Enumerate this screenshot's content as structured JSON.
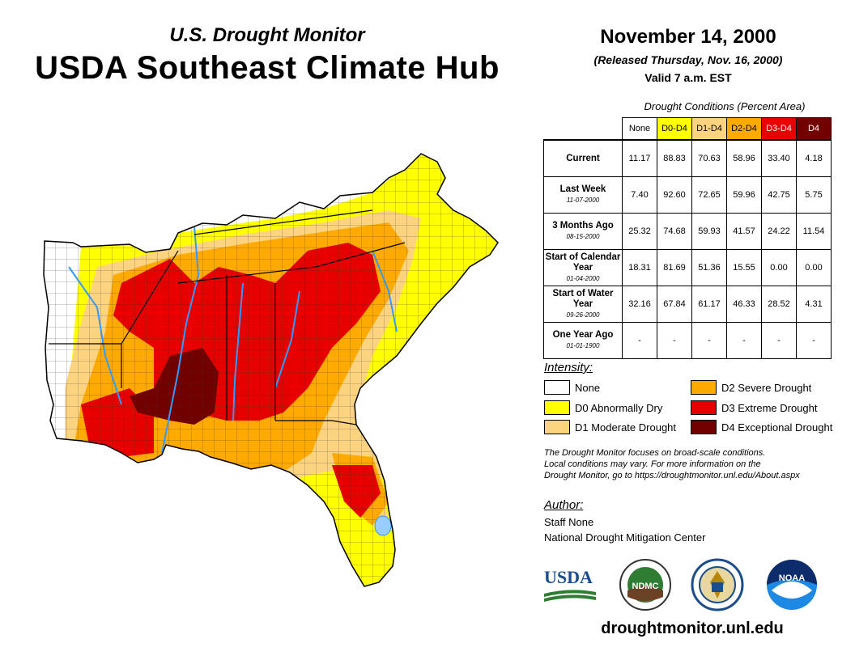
{
  "header": {
    "subtitle": "U.S. Drought Monitor",
    "title": "USDA Southeast Climate Hub",
    "date": "November 14, 2000",
    "released": "(Released Thursday, Nov. 16, 2000)",
    "valid": "Valid 7 a.m. EST"
  },
  "table": {
    "caption": "Drought Conditions (Percent Area)",
    "columns": [
      "None",
      "D0-D4",
      "D1-D4",
      "D2-D4",
      "D3-D4",
      "D4"
    ],
    "column_colors": [
      "#ffffff",
      "#ffff00",
      "#fcd37f",
      "#ffaa00",
      "#e60000",
      "#730000"
    ],
    "rows": [
      {
        "label": "Current",
        "date": "",
        "values": [
          "11.17",
          "88.83",
          "70.63",
          "58.96",
          "33.40",
          "4.18"
        ]
      },
      {
        "label": "Last Week",
        "date": "11-07-2000",
        "values": [
          "7.40",
          "92.60",
          "72.65",
          "59.96",
          "42.75",
          "5.75"
        ]
      },
      {
        "label": "3 Months Ago",
        "date": "08-15-2000",
        "values": [
          "25.32",
          "74.68",
          "59.93",
          "41.57",
          "24.22",
          "11.54"
        ]
      },
      {
        "label": "Start of Calendar Year",
        "date": "01-04-2000",
        "values": [
          "18.31",
          "81.69",
          "51.36",
          "15.55",
          "0.00",
          "0.00"
        ]
      },
      {
        "label": "Start of Water Year",
        "date": "09-26-2000",
        "values": [
          "32.16",
          "67.84",
          "61.17",
          "46.33",
          "28.52",
          "4.31"
        ]
      },
      {
        "label": "One Year Ago",
        "date": "01-01-1900",
        "values": [
          "-",
          "-",
          "-",
          "-",
          "-",
          "-"
        ]
      }
    ]
  },
  "legend": {
    "title": "Intensity:",
    "items": [
      {
        "label": "None",
        "color": "#ffffff"
      },
      {
        "label": "D0 Abnormally Dry",
        "color": "#ffff00"
      },
      {
        "label": "D1 Moderate Drought",
        "color": "#fcd37f"
      },
      {
        "label": "D2 Severe Drought",
        "color": "#ffaa00"
      },
      {
        "label": "D3 Extreme Drought",
        "color": "#e60000"
      },
      {
        "label": "D4 Exceptional Drought",
        "color": "#730000"
      }
    ]
  },
  "note": {
    "line1": "The Drought Monitor focuses on broad-scale conditions.",
    "line2": "Local conditions may vary. For more information on the",
    "line3": "Drought Monitor, go to https://droughtmonitor.unl.edu/About.aspx"
  },
  "author": {
    "title": "Author:",
    "name": "Staff None",
    "org": "National Drought Mitigation Center"
  },
  "logos": {
    "usda": "USDA",
    "ndmc": "NDMC",
    "noaa": "NOAA"
  },
  "website": "droughtmonitor.unl.edu"
}
